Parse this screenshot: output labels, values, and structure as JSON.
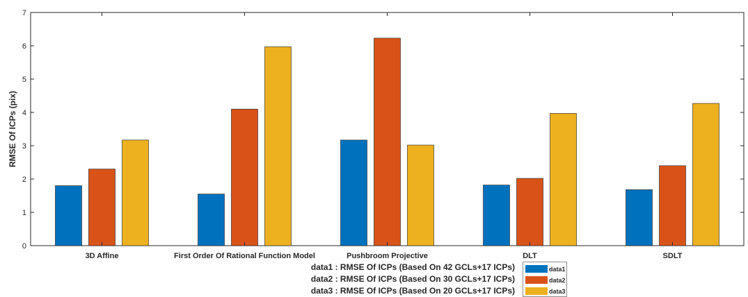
{
  "chart_data": {
    "type": "bar",
    "title": "",
    "xlabel": "",
    "ylabel": "RMSE Of ICPs (pix)",
    "ylim": [
      0,
      7
    ],
    "yticks": [
      "0",
      "1",
      "2",
      "3",
      "4",
      "5",
      "6",
      "7"
    ],
    "categories": [
      "3D Affine",
      "First Order Of Rational Function Model",
      "Pushbroom Projective",
      "DLT",
      "SDLT"
    ],
    "series": [
      {
        "name": "data1",
        "color": "#0072BD",
        "values": [
          1.8,
          1.55,
          3.17,
          1.82,
          1.68
        ]
      },
      {
        "name": "data2",
        "color": "#D95319",
        "values": [
          2.3,
          4.1,
          6.23,
          2.02,
          2.4
        ]
      },
      {
        "name": "data3",
        "color": "#EDB120",
        "values": [
          3.17,
          5.97,
          3.02,
          3.97,
          4.27
        ]
      }
    ],
    "grid": false,
    "legend_position": "bottom-center"
  },
  "notes": [
    "data1 : RMSE Of ICPs (Based On 42 GCLs+17 ICPs)",
    "data2 : RMSE Of ICPs (Based On 30 GCLs+17 ICPs)",
    "data3 : RMSE Of ICPs (Based On 20 GCLs+17 ICPs)"
  ]
}
